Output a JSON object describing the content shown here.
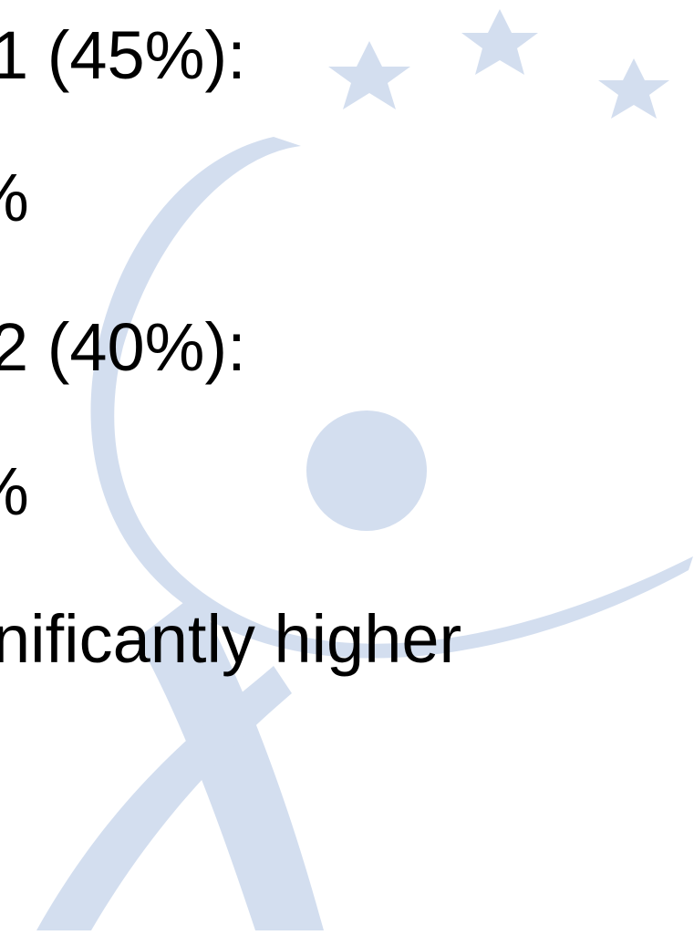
{
  "slide": {
    "lines": [
      "1 (45%):",
      "%",
      "2 (40%):",
      "%",
      "nificantly higher"
    ]
  },
  "watermark": {
    "logo_icon": "stars-and-figure-logo",
    "color": "#d3deef"
  }
}
